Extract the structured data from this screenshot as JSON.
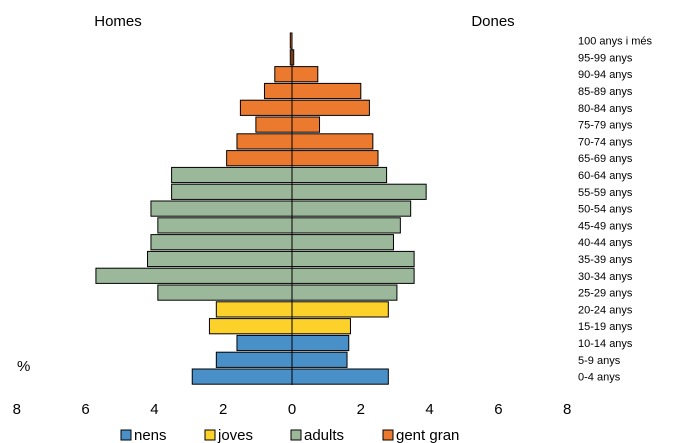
{
  "chart_data": {
    "type": "bar",
    "orientation": "horizontal-population-pyramid",
    "left_side_label": "Homes",
    "right_side_label": "Dones",
    "unit_label": "%",
    "xlim": [
      -8,
      8
    ],
    "ticks": [
      {
        "value": -8,
        "label": "8"
      },
      {
        "value": -6,
        "label": "6"
      },
      {
        "value": -4,
        "label": "4"
      },
      {
        "value": -2,
        "label": "2"
      },
      {
        "value": 0,
        "label": "0"
      },
      {
        "value": 2,
        "label": "2"
      },
      {
        "value": 4,
        "label": "4"
      },
      {
        "value": 6,
        "label": "6"
      },
      {
        "value": 8,
        "label": "8"
      }
    ],
    "categories": [
      "0-4 anys",
      "5-9 anys",
      "10-14 anys",
      "15-19 anys",
      "20-24 anys",
      "25-29 anys",
      "30-34 anys",
      "35-39 anys",
      "40-44 anys",
      "45-49 anys",
      "50-54 anys",
      "55-59 anys",
      "60-64 anys",
      "65-69 anys",
      "70-74 anys",
      "75-79 anys",
      "80-84 anys",
      "85-89 anys",
      "90-94 anys",
      "95-99 anys",
      "100 anys i més"
    ],
    "homes": [
      2.9,
      2.2,
      1.6,
      2.4,
      2.2,
      3.9,
      5.7,
      4.2,
      4.1,
      3.9,
      4.1,
      3.5,
      3.5,
      1.9,
      1.6,
      1.05,
      1.5,
      0.8,
      0.5,
      0.05,
      0.05
    ],
    "dones": [
      2.8,
      1.6,
      1.65,
      1.7,
      2.8,
      3.05,
      3.55,
      3.55,
      2.95,
      3.15,
      3.45,
      3.9,
      2.75,
      2.5,
      2.35,
      0.8,
      2.25,
      2.0,
      0.75,
      0.05,
      0.0
    ],
    "groups": [
      {
        "name": "nens",
        "color": "#4a90c8",
        "from": 0,
        "to": 2
      },
      {
        "name": "joves",
        "color": "#fcd12a",
        "from": 3,
        "to": 4
      },
      {
        "name": "adults",
        "color": "#9bb89a",
        "from": 5,
        "to": 12
      },
      {
        "name": "gent gran",
        "color": "#eb7a2f",
        "from": 13,
        "to": 20
      }
    ],
    "legend_position": "bottom",
    "grid": false
  }
}
